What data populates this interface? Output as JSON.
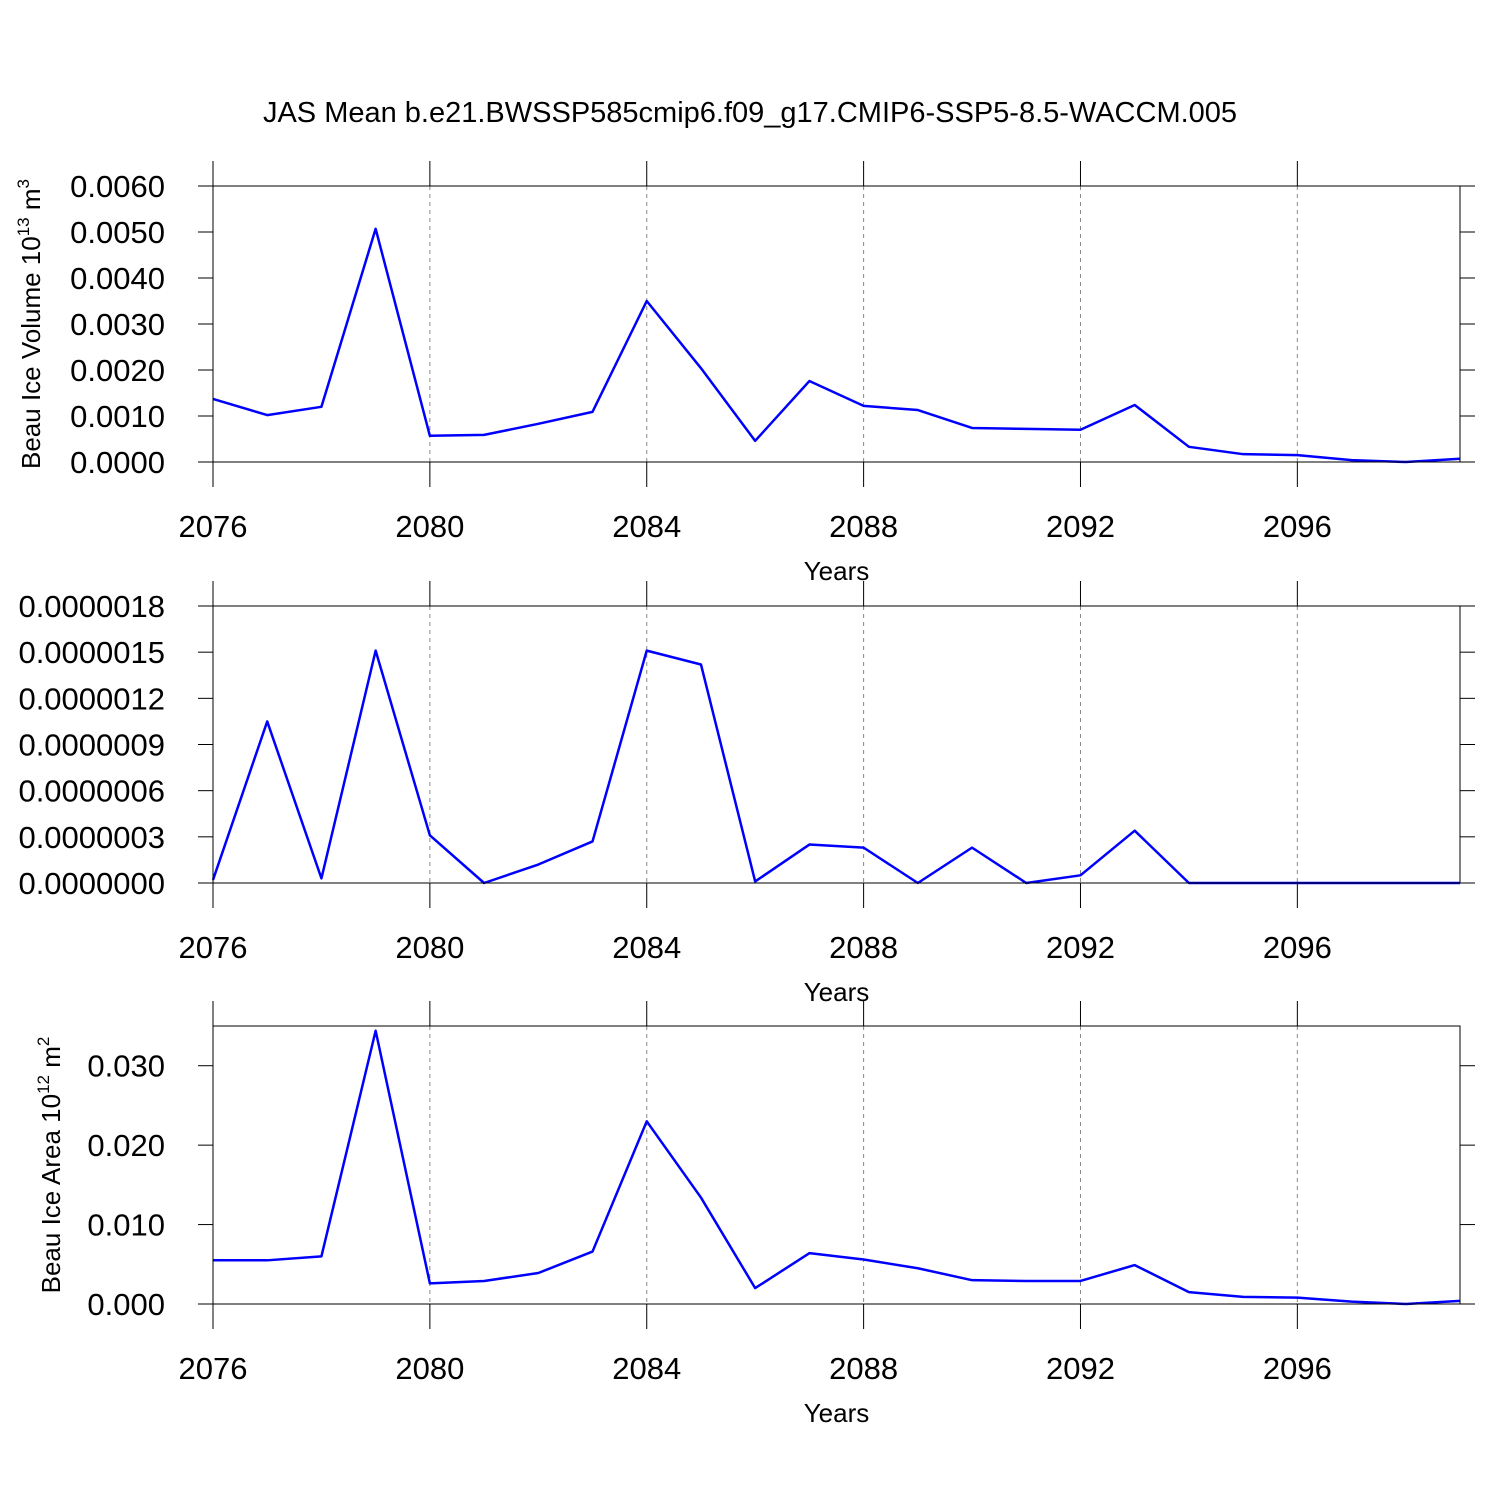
{
  "chart_data": [
    {
      "type": "line",
      "title": "JAS Mean b.e21.BWSSP585cmip6.f09_g17.CMIP6-SSP5-8.5-WACCM.005",
      "ylabel": [
        "Beau Ice Volume 10",
        "13",
        " m",
        "3"
      ],
      "xlabel": "Years",
      "x": [
        2076,
        2077,
        2078,
        2079,
        2080,
        2081,
        2082,
        2083,
        2084,
        2085,
        2086,
        2087,
        2088,
        2089,
        2090,
        2091,
        2092,
        2093,
        2094,
        2095,
        2096,
        2097,
        2098,
        2099
      ],
      "values": [
        0.00137,
        0.00102,
        0.0012,
        0.00507,
        0.00057,
        0.00059,
        0.00083,
        0.00109,
        0.0035,
        0.00204,
        0.00046,
        0.00176,
        0.00122,
        0.00113,
        0.00074,
        0.00072,
        0.0007,
        0.00124,
        0.00033,
        0.00017,
        0.00015,
        4e-05,
        0.0,
        7e-05
      ],
      "color": "#0000ff",
      "xlim": [
        2076,
        2099
      ],
      "xticks": [
        2076,
        2080,
        2084,
        2088,
        2092,
        2096
      ],
      "ylim": [
        0,
        0.006
      ],
      "yticks": [
        {
          "value": 0,
          "label": "0.0000"
        },
        {
          "value": 0.001,
          "label": "0.0010"
        },
        {
          "value": 0.002,
          "label": "0.0020"
        },
        {
          "value": 0.003,
          "label": "0.0030"
        },
        {
          "value": 0.004,
          "label": "0.0040"
        },
        {
          "value": 0.005,
          "label": "0.0050"
        },
        {
          "value": 0.006,
          "label": "0.0060"
        }
      ],
      "grid": true
    },
    {
      "type": "line",
      "xlabel": "Years",
      "x": [
        2076,
        2077,
        2078,
        2079,
        2080,
        2081,
        2082,
        2083,
        2084,
        2085,
        2086,
        2087,
        2088,
        2089,
        2090,
        2091,
        2092,
        2093,
        2094,
        2095,
        2096,
        2097,
        2098,
        2099
      ],
      "values": [
        2e-08,
        1.05e-06,
        3e-08,
        1.51e-06,
        3.1e-07,
        0.0,
        1.2e-07,
        2.7e-07,
        1.51e-06,
        1.42e-06,
        1e-08,
        2.5e-07,
        2.3e-07,
        0.0,
        2.3e-07,
        0.0,
        5e-08,
        3.4e-07,
        0.0,
        0.0,
        0.0,
        0.0,
        0.0,
        0.0
      ],
      "color": "#0000ff",
      "xlim": [
        2076,
        2099
      ],
      "xticks": [
        2076,
        2080,
        2084,
        2088,
        2092,
        2096
      ],
      "ylim": [
        0,
        1.8e-06
      ],
      "yticks": [
        {
          "value": 0,
          "label": "0.0000000"
        },
        {
          "value": 3e-07,
          "label": "0.0000003"
        },
        {
          "value": 6e-07,
          "label": "0.0000006"
        },
        {
          "value": 9e-07,
          "label": "0.0000009"
        },
        {
          "value": 1.2e-06,
          "label": "0.0000012"
        },
        {
          "value": 1.5e-06,
          "label": "0.0000015"
        },
        {
          "value": 1.8e-06,
          "label": "0.0000018"
        }
      ],
      "grid": true
    },
    {
      "type": "line",
      "ylabel": [
        "Beau Ice Area 10",
        "12",
        " m",
        "2"
      ],
      "xlabel": "Years",
      "x": [
        2076,
        2077,
        2078,
        2079,
        2080,
        2081,
        2082,
        2083,
        2084,
        2085,
        2086,
        2087,
        2088,
        2089,
        2090,
        2091,
        2092,
        2093,
        2094,
        2095,
        2096,
        2097,
        2098,
        2099
      ],
      "values": [
        0.0055,
        0.0055,
        0.006,
        0.0344,
        0.0026,
        0.0029,
        0.0039,
        0.0066,
        0.023,
        0.0134,
        0.002,
        0.0064,
        0.0056,
        0.0045,
        0.003,
        0.0029,
        0.0029,
        0.0049,
        0.0015,
        0.0009,
        0.0008,
        0.0003,
        0.0,
        0.0004
      ],
      "color": "#0000ff",
      "xlim": [
        2076,
        2099
      ],
      "xticks": [
        2076,
        2080,
        2084,
        2088,
        2092,
        2096
      ],
      "ylim": [
        0,
        0.035
      ],
      "yticks": [
        {
          "value": 0,
          "label": "0.000"
        },
        {
          "value": 0.01,
          "label": "0.010"
        },
        {
          "value": 0.02,
          "label": "0.020"
        },
        {
          "value": 0.03,
          "label": "0.030"
        }
      ],
      "grid": true
    }
  ]
}
